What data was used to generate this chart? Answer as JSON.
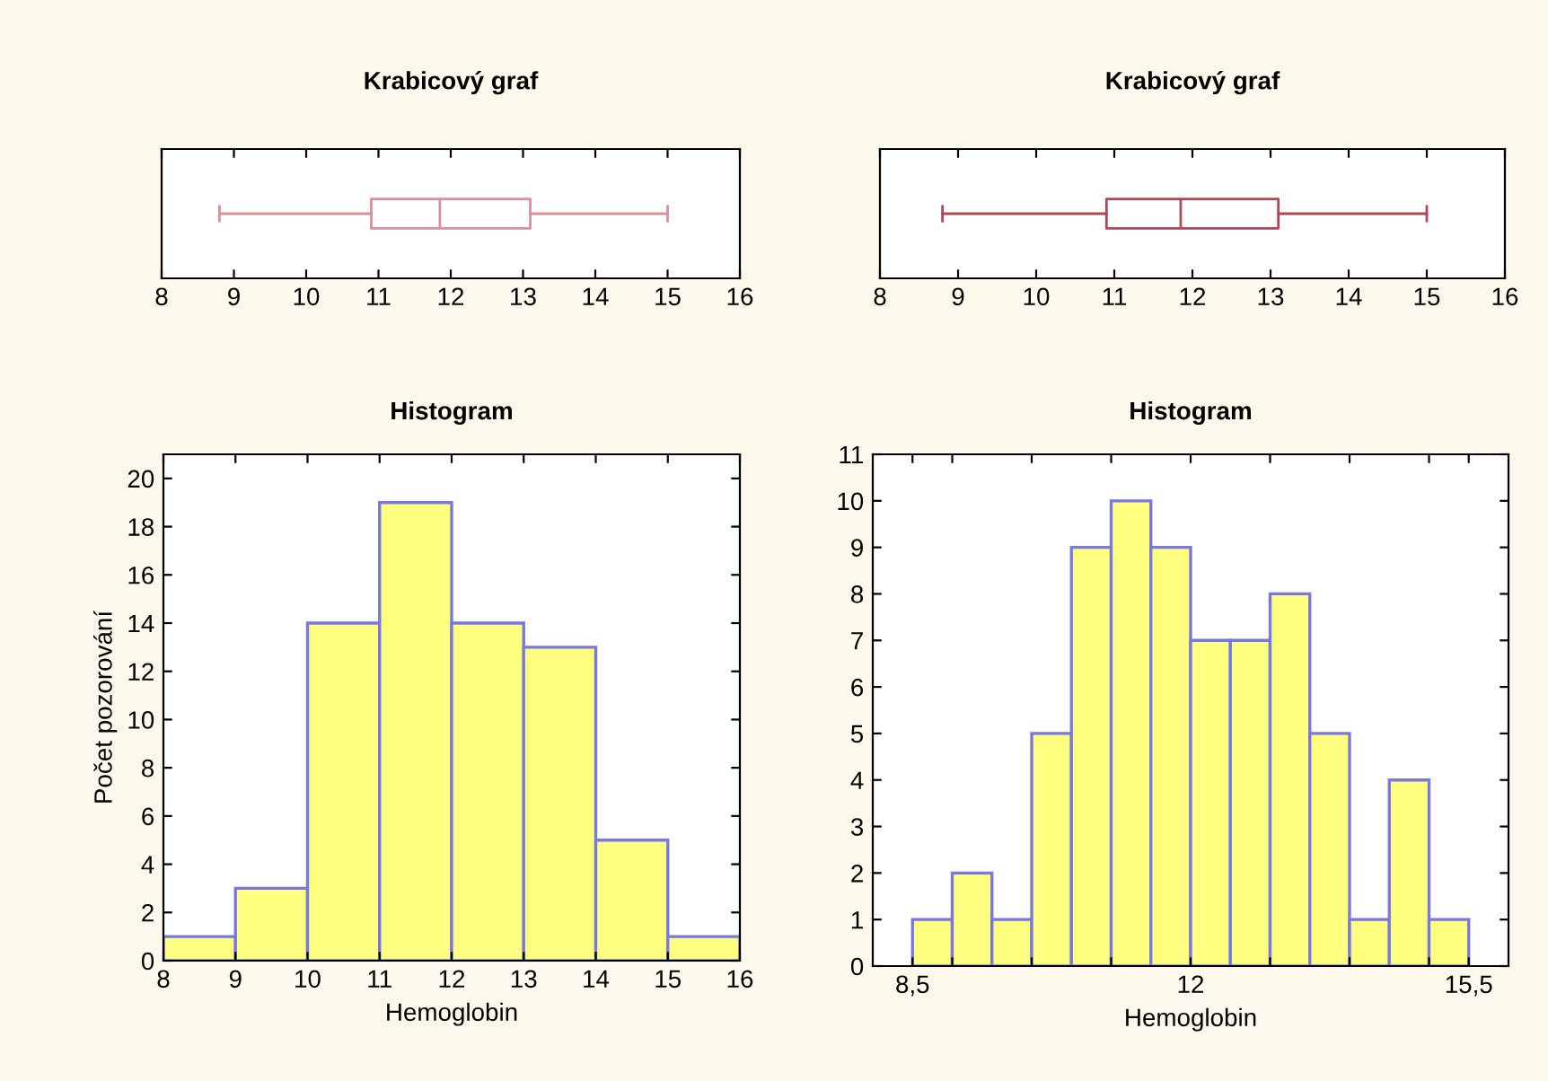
{
  "chart_data": [
    {
      "type": "box",
      "title": "Krabicový graf",
      "orientation": "horizontal",
      "categories": [
        null
      ],
      "color": "#d9909c",
      "boxes": [
        {
          "low": 8.8,
          "q1": 10.9,
          "median": 11.85,
          "q3": 13.1,
          "high": 15.0
        }
      ],
      "xlim": [
        8,
        16
      ],
      "xticks": [
        8,
        9,
        10,
        11,
        12,
        13,
        14,
        15,
        16
      ],
      "tick_labels": "x",
      "grid": false
    },
    {
      "type": "box",
      "title": "Krabicový graf",
      "orientation": "horizontal",
      "categories": [
        null
      ],
      "color": "#b04858",
      "boxes": [
        {
          "low": 8.8,
          "q1": 10.9,
          "median": 11.85,
          "q3": 13.1,
          "high": 15.0
        }
      ],
      "xlim": [
        8,
        16
      ],
      "xticks": [
        8,
        9,
        10,
        11,
        12,
        13,
        14,
        15,
        16
      ],
      "tick_labels": "x",
      "grid": false
    },
    {
      "type": "histogram",
      "title": "Histogram",
      "xlabel": "Hemoglobin",
      "ylabel": "Počet pozorování",
      "color": "#ffff80",
      "bins": [
        8,
        9,
        10,
        11,
        12,
        13,
        14,
        15,
        16
      ],
      "values": [
        1,
        3,
        14,
        19,
        14,
        13,
        5,
        1
      ],
      "xlim": [
        8,
        16
      ],
      "xticks": [
        8,
        9,
        10,
        11,
        12,
        13,
        14,
        15,
        16
      ],
      "ylim": [
        0,
        21
      ],
      "yticks": [
        0,
        2,
        4,
        6,
        8,
        10,
        12,
        14,
        16,
        18,
        20
      ],
      "grid": false
    },
    {
      "type": "histogram",
      "title": "Histogram",
      "xlabel": "Hemoglobin",
      "color": "#ffff80",
      "bins": [
        8.5,
        9,
        9.5,
        10,
        10.5,
        11,
        11.5,
        12,
        12.5,
        13,
        13.5,
        14,
        14.5,
        15,
        15.5
      ],
      "values": [
        1,
        2,
        1,
        5,
        9,
        10,
        9,
        7,
        7,
        8,
        5,
        1,
        4,
        1
      ],
      "xlim": [
        8,
        16
      ],
      "xticks": [
        {
          "value": 8.5,
          "label": "8,5"
        },
        {
          "value": 9,
          "label": null
        },
        {
          "value": 10,
          "label": null
        },
        {
          "value": 11,
          "label": null
        },
        {
          "value": 12,
          "label": "12"
        },
        {
          "value": 13,
          "label": null
        },
        {
          "value": 14,
          "label": null
        },
        {
          "value": 15,
          "label": null
        },
        {
          "value": 15.5,
          "label": "15,5"
        }
      ],
      "ylim": [
        0,
        11
      ],
      "yticks": [
        0,
        1,
        2,
        3,
        4,
        5,
        6,
        7,
        8,
        9,
        10,
        11
      ],
      "grid": false
    }
  ]
}
